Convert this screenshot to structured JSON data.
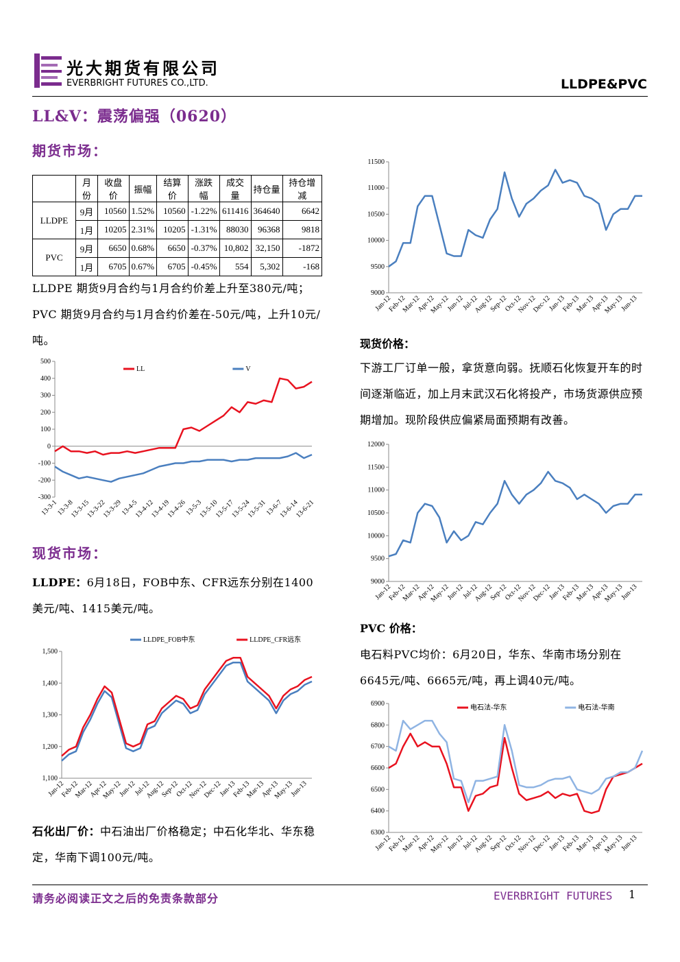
{
  "header": {
    "company_cn": "光大期货有限公司",
    "company_en": "EVERBRIGHT FUTURES CO.,LTD.",
    "report_tag": "LLDPE&PVC"
  },
  "title": "LL&V：震荡偏强（0620）",
  "futures": {
    "heading": "期货市场：",
    "text": "LLDPE 期货9月合约与1月合约价差上升至380元/吨；PVC 期货9月合约与1月合约价差在-50元/吨，上升10元/吨。"
  },
  "table": {
    "header": [
      "月份",
      "收盘价",
      "振幅",
      "结算价",
      "涨跌幅",
      "成交量",
      "持仓量",
      "持仓增减"
    ],
    "groups": [
      {
        "name": "LLDPE",
        "rows": [
          [
            "9月",
            "10560",
            "1.52%",
            "10560",
            "-1.22%",
            "611416",
            "364640",
            "6642"
          ],
          [
            "1月",
            "10205",
            "2.31%",
            "10205",
            "-1.31%",
            "88030",
            "96368",
            "9818"
          ]
        ]
      },
      {
        "name": "PVC",
        "rows": [
          [
            "9月",
            "6650",
            "0.68%",
            "6650",
            "-0.37%",
            "10,802",
            "32,150",
            "-1872"
          ],
          [
            "1月",
            "6705",
            "0.67%",
            "6705",
            "-0.45%",
            "554",
            "5,302",
            "-168"
          ]
        ]
      }
    ]
  },
  "spot_market": {
    "heading": "现货市场：",
    "lldpe_label": "LLDPE：",
    "lldpe_text": "6月18日，FOB中东、CFR远东分别在1400美元/吨、1415美元/吨。",
    "plant_label": "石化出厂价：",
    "plant_text": "中石油出厂价格稳定；中石化华北、华东稳定，华南下调100元/吨。"
  },
  "spot_price": {
    "heading": "现货价格：",
    "text": "下游工厂订单一般，拿货意向弱。抚顺石化恢复开车的时间逐渐临近，加上月末武汉石化将投产，市场货源供应预期增加。现阶段供应偏紧局面预期有改善。"
  },
  "pvc_price": {
    "heading": "PVC 价格：",
    "text": "电石料PVC均价：6月20日，华东、华南市场分别在6645元/吨、6665元/吨，再上调40元/吨。"
  },
  "footer": {
    "disclaimer": "请务必阅读正文之后的免责条款部分",
    "brand": "EVERBRIGHT FUTURES",
    "page": "1"
  },
  "chart_data": [
    {
      "type": "line",
      "color": "#4a7fbf",
      "categories": [
        "Jan-12",
        null,
        "Feb-12",
        null,
        "Mar-12",
        null,
        "Apr-12",
        null,
        "May-12",
        null,
        "Jun-12",
        null,
        "Jul-12",
        null,
        "Aug-12",
        null,
        "Sep-12",
        null,
        "Oct-12",
        null,
        "Nov-12",
        null,
        "Dec-12",
        null,
        "Jan-13",
        null,
        "Feb-13",
        null,
        "Mar-13",
        null,
        "Apr-13",
        null,
        "May-13",
        null,
        "Jun-13",
        null
      ],
      "values": [
        9500,
        9600,
        9950,
        9950,
        10650,
        10850,
        10850,
        10300,
        9750,
        9700,
        9700,
        10200,
        10100,
        10050,
        10400,
        10600,
        11300,
        10800,
        10450,
        10700,
        10800,
        10950,
        11050,
        11350,
        11100,
        11150,
        11100,
        10850,
        10800,
        10700,
        10200,
        10500,
        10600,
        10600,
        10850,
        10850
      ],
      "ylim": [
        9000,
        11500
      ],
      "yticks": [
        9000,
        9500,
        10000,
        10500,
        11000,
        11500
      ]
    },
    {
      "type": "line",
      "legend": "top",
      "categories": [
        "13-3-1",
        null,
        "13-3-8",
        null,
        "13-3-15",
        null,
        "13-3-22",
        null,
        "13-3-29",
        null,
        "13-4-5",
        null,
        "13-4-12",
        null,
        "13-4-19",
        null,
        "13-4-26",
        null,
        "13-5-3",
        null,
        "13-5-10",
        null,
        "13-5-17",
        null,
        "13-5-24",
        null,
        "13-5-31",
        null,
        "13-6-7",
        null,
        "13-6-14",
        null,
        "13-6-21"
      ],
      "series": [
        {
          "name": "LL",
          "color": "#e8121f",
          "values": [
            -30,
            0,
            -30,
            -30,
            -40,
            -30,
            -50,
            -40,
            -40,
            -30,
            -40,
            -30,
            -20,
            -10,
            -10,
            -10,
            100,
            110,
            90,
            120,
            150,
            180,
            230,
            200,
            260,
            250,
            270,
            260,
            400,
            390,
            340,
            350,
            380
          ]
        },
        {
          "name": "V",
          "color": "#4a7fbf",
          "values": [
            -120,
            -150,
            -170,
            -190,
            -180,
            -190,
            -200,
            -210,
            -190,
            -180,
            -170,
            -160,
            -140,
            -120,
            -110,
            -100,
            -100,
            -90,
            -90,
            -80,
            -80,
            -80,
            -90,
            -80,
            -80,
            -70,
            -70,
            -70,
            -70,
            -60,
            -40,
            -70,
            -50
          ]
        }
      ],
      "ylim": [
        -300,
        500
      ],
      "yticks": [
        -300,
        -200,
        -100,
        0,
        100,
        200,
        300,
        400,
        500
      ]
    },
    {
      "type": "line",
      "color": "#4a7fbf",
      "categories": [
        "Jan-12",
        null,
        "Feb-12",
        null,
        "Mar-12",
        null,
        "Apr-12",
        null,
        "May-12",
        null,
        "Jun-12",
        null,
        "Jul-12",
        null,
        "Aug-12",
        null,
        "Sep-12",
        null,
        "Oct-12",
        null,
        "Nov-12",
        null,
        "Dec-12",
        null,
        "Jan-13",
        null,
        "Feb-13",
        null,
        "Mar-13",
        null,
        "Apr-13",
        null,
        "May-13",
        null,
        "Jun-13",
        null
      ],
      "values": [
        9550,
        9600,
        9900,
        9850,
        10500,
        10700,
        10650,
        10400,
        9850,
        10100,
        9900,
        10000,
        10300,
        10250,
        10500,
        10700,
        11200,
        10900,
        10700,
        10900,
        11000,
        11150,
        11400,
        11200,
        11150,
        11050,
        10800,
        10900,
        10800,
        10700,
        10500,
        10650,
        10700,
        10700,
        10900,
        10900
      ],
      "ylim": [
        9000,
        12000
      ],
      "yticks": [
        9000,
        9500,
        10000,
        10500,
        11000,
        11500,
        12000
      ]
    },
    {
      "type": "line",
      "legend": "top",
      "categories": [
        "Jan-12",
        null,
        "Feb-12",
        null,
        "Mar-12",
        null,
        "Apr-12",
        null,
        "May-12",
        null,
        "Jun-12",
        null,
        "Jul-12",
        null,
        "Aug-12",
        null,
        "Sep-12",
        null,
        "Oct-12",
        null,
        "Nov-12",
        null,
        "Dec-12",
        null,
        "Jan-13",
        null,
        "Feb-13",
        null,
        "Mar-13",
        null,
        "Apr-13",
        null,
        "May-13",
        null,
        "Jun-13",
        null
      ],
      "series": [
        {
          "name": "LLDPE_FOB中东",
          "color": "#4a7fbf",
          "values": [
            1155,
            1175,
            1185,
            1245,
            1285,
            1335,
            1375,
            1355,
            1275,
            1195,
            1185,
            1195,
            1255,
            1265,
            1305,
            1325,
            1345,
            1335,
            1305,
            1315,
            1365,
            1395,
            1425,
            1455,
            1465,
            1465,
            1405,
            1385,
            1365,
            1345,
            1305,
            1345,
            1365,
            1375,
            1395,
            1405
          ]
        },
        {
          "name": "LLDPE_CFR远东",
          "color": "#e8121f",
          "values": [
            1170,
            1190,
            1200,
            1260,
            1300,
            1350,
            1390,
            1370,
            1290,
            1210,
            1200,
            1210,
            1270,
            1280,
            1320,
            1340,
            1360,
            1350,
            1320,
            1330,
            1380,
            1410,
            1440,
            1470,
            1480,
            1480,
            1420,
            1400,
            1380,
            1360,
            1320,
            1360,
            1380,
            1390,
            1410,
            1420
          ]
        }
      ],
      "ylim": [
        1100,
        1500
      ],
      "yticks": [
        {
          "value": 1100,
          "label": "1,100"
        },
        {
          "value": 1200,
          "label": "1,200"
        },
        {
          "value": 1300,
          "label": "1,300"
        },
        {
          "value": 1400,
          "label": "1,400"
        },
        {
          "value": 1500,
          "label": "1,500"
        }
      ]
    },
    {
      "type": "line",
      "legend": "top",
      "categories": [
        "Jan-12",
        null,
        "Feb-12",
        null,
        "Mar-12",
        null,
        "Apr-12",
        null,
        "May-12",
        null,
        "Jun-12",
        null,
        "Jul-12",
        null,
        "Aug-12",
        null,
        "Sep-12",
        null,
        "Oct-12",
        null,
        "Nov-12",
        null,
        "Dec-12",
        null,
        "Jan-13",
        null,
        "Feb-13",
        null,
        "Mar-13",
        null,
        "Apr-13",
        null,
        "May-13",
        null,
        "Jun-13",
        null
      ],
      "series": [
        {
          "name": "电石法-华东",
          "color": "#e8121f",
          "values": [
            6600,
            6620,
            6700,
            6760,
            6700,
            6720,
            6700,
            6700,
            6620,
            6510,
            6510,
            6400,
            6470,
            6480,
            6510,
            6520,
            6740,
            6600,
            6480,
            6450,
            6460,
            6470,
            6490,
            6460,
            6480,
            6470,
            6480,
            6400,
            6390,
            6400,
            6500,
            6560,
            6570,
            6580,
            6600,
            6620
          ]
        },
        {
          "name": "电石法-华南",
          "color": "#8fb4e3",
          "values": [
            6700,
            6680,
            6820,
            6780,
            6800,
            6820,
            6820,
            6760,
            6720,
            6550,
            6540,
            6440,
            6540,
            6540,
            6550,
            6560,
            6800,
            6680,
            6520,
            6510,
            6510,
            6520,
            6540,
            6550,
            6550,
            6560,
            6500,
            6490,
            6480,
            6500,
            6550,
            6560,
            6580,
            6580,
            6600,
            6680
          ]
        }
      ],
      "ylim": [
        6300,
        6900
      ],
      "yticks": [
        6300,
        6400,
        6500,
        6600,
        6700,
        6800,
        6900
      ]
    }
  ]
}
